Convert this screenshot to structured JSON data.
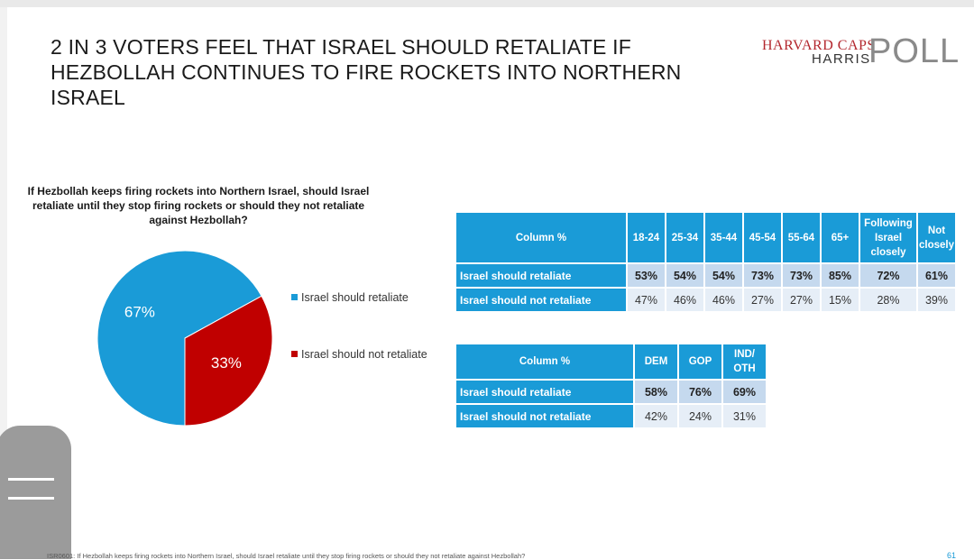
{
  "title": "2 IN 3 VOTERS FEEL THAT ISRAEL SHOULD RETALIATE IF HEZBOLLAH CONTINUES TO FIRE ROCKETS INTO NORTHERN ISRAEL",
  "logo": {
    "line1": "HARVARD CAPS",
    "line2": "HARRIS",
    "poll": "POLL"
  },
  "question": "If Hezbollah keeps firing rockets into Northern Israel, should Israel retaliate until they stop firing rockets or should they not retaliate against Hezbollah?",
  "colors": {
    "retaliate": "#1a9bd7",
    "not_retaliate": "#c00000",
    "table_header": "#1a9bd7"
  },
  "chart_data": [
    {
      "type": "pie",
      "labels": [
        "Israel should retaliate",
        "Israel should not retaliate"
      ],
      "values": [
        67,
        33
      ],
      "value_labels": [
        "67%",
        "33%"
      ],
      "legend_position": "right"
    },
    {
      "type": "table",
      "corner": "Column %",
      "columns": [
        "18-24",
        "25-34",
        "35-44",
        "45-54",
        "55-64",
        "65+",
        "Following Israel closely",
        "Not closely"
      ],
      "rows": [
        {
          "label": "Israel should retaliate",
          "values": [
            "53%",
            "54%",
            "54%",
            "73%",
            "73%",
            "85%",
            "72%",
            "61%"
          ]
        },
        {
          "label": "Israel should not retaliate",
          "values": [
            "47%",
            "46%",
            "46%",
            "27%",
            "27%",
            "15%",
            "28%",
            "39%"
          ]
        }
      ]
    },
    {
      "type": "table",
      "corner": "Column %",
      "columns": [
        "DEM",
        "GOP",
        "IND/ OTH"
      ],
      "rows": [
        {
          "label": "Israel should retaliate",
          "values": [
            "58%",
            "76%",
            "69%"
          ]
        },
        {
          "label": "Israel should not retaliate",
          "values": [
            "42%",
            "24%",
            "31%"
          ]
        }
      ]
    }
  ],
  "footnote": "ISR0601: If Hezbollah keeps firing rockets into Northern Israel, should Israel retaliate until they stop firing rockets or should they not retaliate against Hezbollah?",
  "page_number": "61"
}
